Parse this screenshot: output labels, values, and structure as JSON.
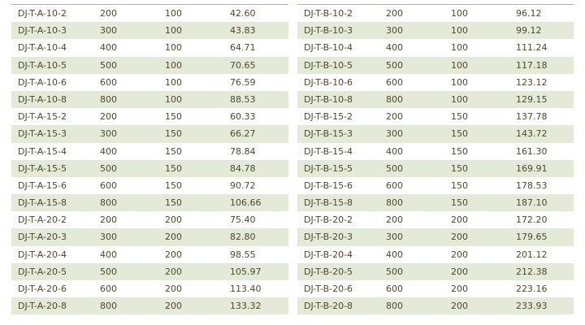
{
  "colors": {
    "stripe": "#e4e9d8",
    "text": "#4d4a2c",
    "rule": "#b9b48e"
  },
  "tables": [
    {
      "rows": [
        [
          "DJ-T-A-10-2",
          "200",
          "100",
          "42.60"
        ],
        [
          "DJ-T-A-10-3",
          "300",
          "100",
          "43.83"
        ],
        [
          "DJ-T-A-10-4",
          "400",
          "100",
          "64.71"
        ],
        [
          "DJ-T-A-10-5",
          "500",
          "100",
          "70.65"
        ],
        [
          "DJ-T-A-10-6",
          "600",
          "100",
          "76.59"
        ],
        [
          "DJ-T-A-10-8",
          "800",
          "100",
          "88.53"
        ],
        [
          "DJ-T-A-15-2",
          "200",
          "150",
          "60.33"
        ],
        [
          "DJ-T-A-15-3",
          "300",
          "150",
          "66.27"
        ],
        [
          "DJ-T-A-15-4",
          "400",
          "150",
          "78.84"
        ],
        [
          "DJ-T-A-15-5",
          "500",
          "150",
          "84.78"
        ],
        [
          "DJ-T-A-15-6",
          "600",
          "150",
          "90.72"
        ],
        [
          "DJ-T-A-15-8",
          "800",
          "150",
          "106.66"
        ],
        [
          "DJ-T-A-20-2",
          "200",
          "200",
          "75.40"
        ],
        [
          "DJ-T-A-20-3",
          "300",
          "200",
          "82.80"
        ],
        [
          "DJ-T-A-20-4",
          "400",
          "200",
          "98.55"
        ],
        [
          "DJ-T-A-20-5",
          "500",
          "200",
          "105.97"
        ],
        [
          "DJ-T-A-20-6",
          "600",
          "200",
          "113.40"
        ],
        [
          "DJ-T-A-20-8",
          "800",
          "200",
          "133.32"
        ]
      ]
    },
    {
      "rows": [
        [
          "DJ-T-B-10-2",
          "200",
          "100",
          "96.12"
        ],
        [
          "DJ-T-B-10-3",
          "300",
          "100",
          "99.12"
        ],
        [
          "DJ-T-B-10-4",
          "400",
          "100",
          "111.24"
        ],
        [
          "DJ-T-B-10-5",
          "500",
          "100",
          "117.18"
        ],
        [
          "DJ-T-B-10-6",
          "600",
          "100",
          "123.12"
        ],
        [
          "DJ-T-B-10-8",
          "800",
          "100",
          "129.15"
        ],
        [
          "DJ-T-B-15-2",
          "200",
          "150",
          "137.78"
        ],
        [
          "DJ-T-B-15-3",
          "300",
          "150",
          "143.72"
        ],
        [
          "DJ-T-B-15-4",
          "400",
          "150",
          "161.30"
        ],
        [
          "DJ-T-B-15-5",
          "500",
          "150",
          "169.91"
        ],
        [
          "DJ-T-B-15-6",
          "600",
          "150",
          "178.53"
        ],
        [
          "DJ-T-B-15-8",
          "800",
          "150",
          "187.10"
        ],
        [
          "DJ-T-B-20-2",
          "200",
          "200",
          "172.20"
        ],
        [
          "DJ-T-B-20-3",
          "300",
          "200",
          "179.65"
        ],
        [
          "DJ-T-B-20-4",
          "400",
          "200",
          "201.12"
        ],
        [
          "DJ-T-B-20-5",
          "500",
          "200",
          "212.38"
        ],
        [
          "DJ-T-B-20-6",
          "600",
          "200",
          "223.16"
        ],
        [
          "DJ-T-B-20-8",
          "800",
          "200",
          "233.93"
        ]
      ]
    }
  ]
}
